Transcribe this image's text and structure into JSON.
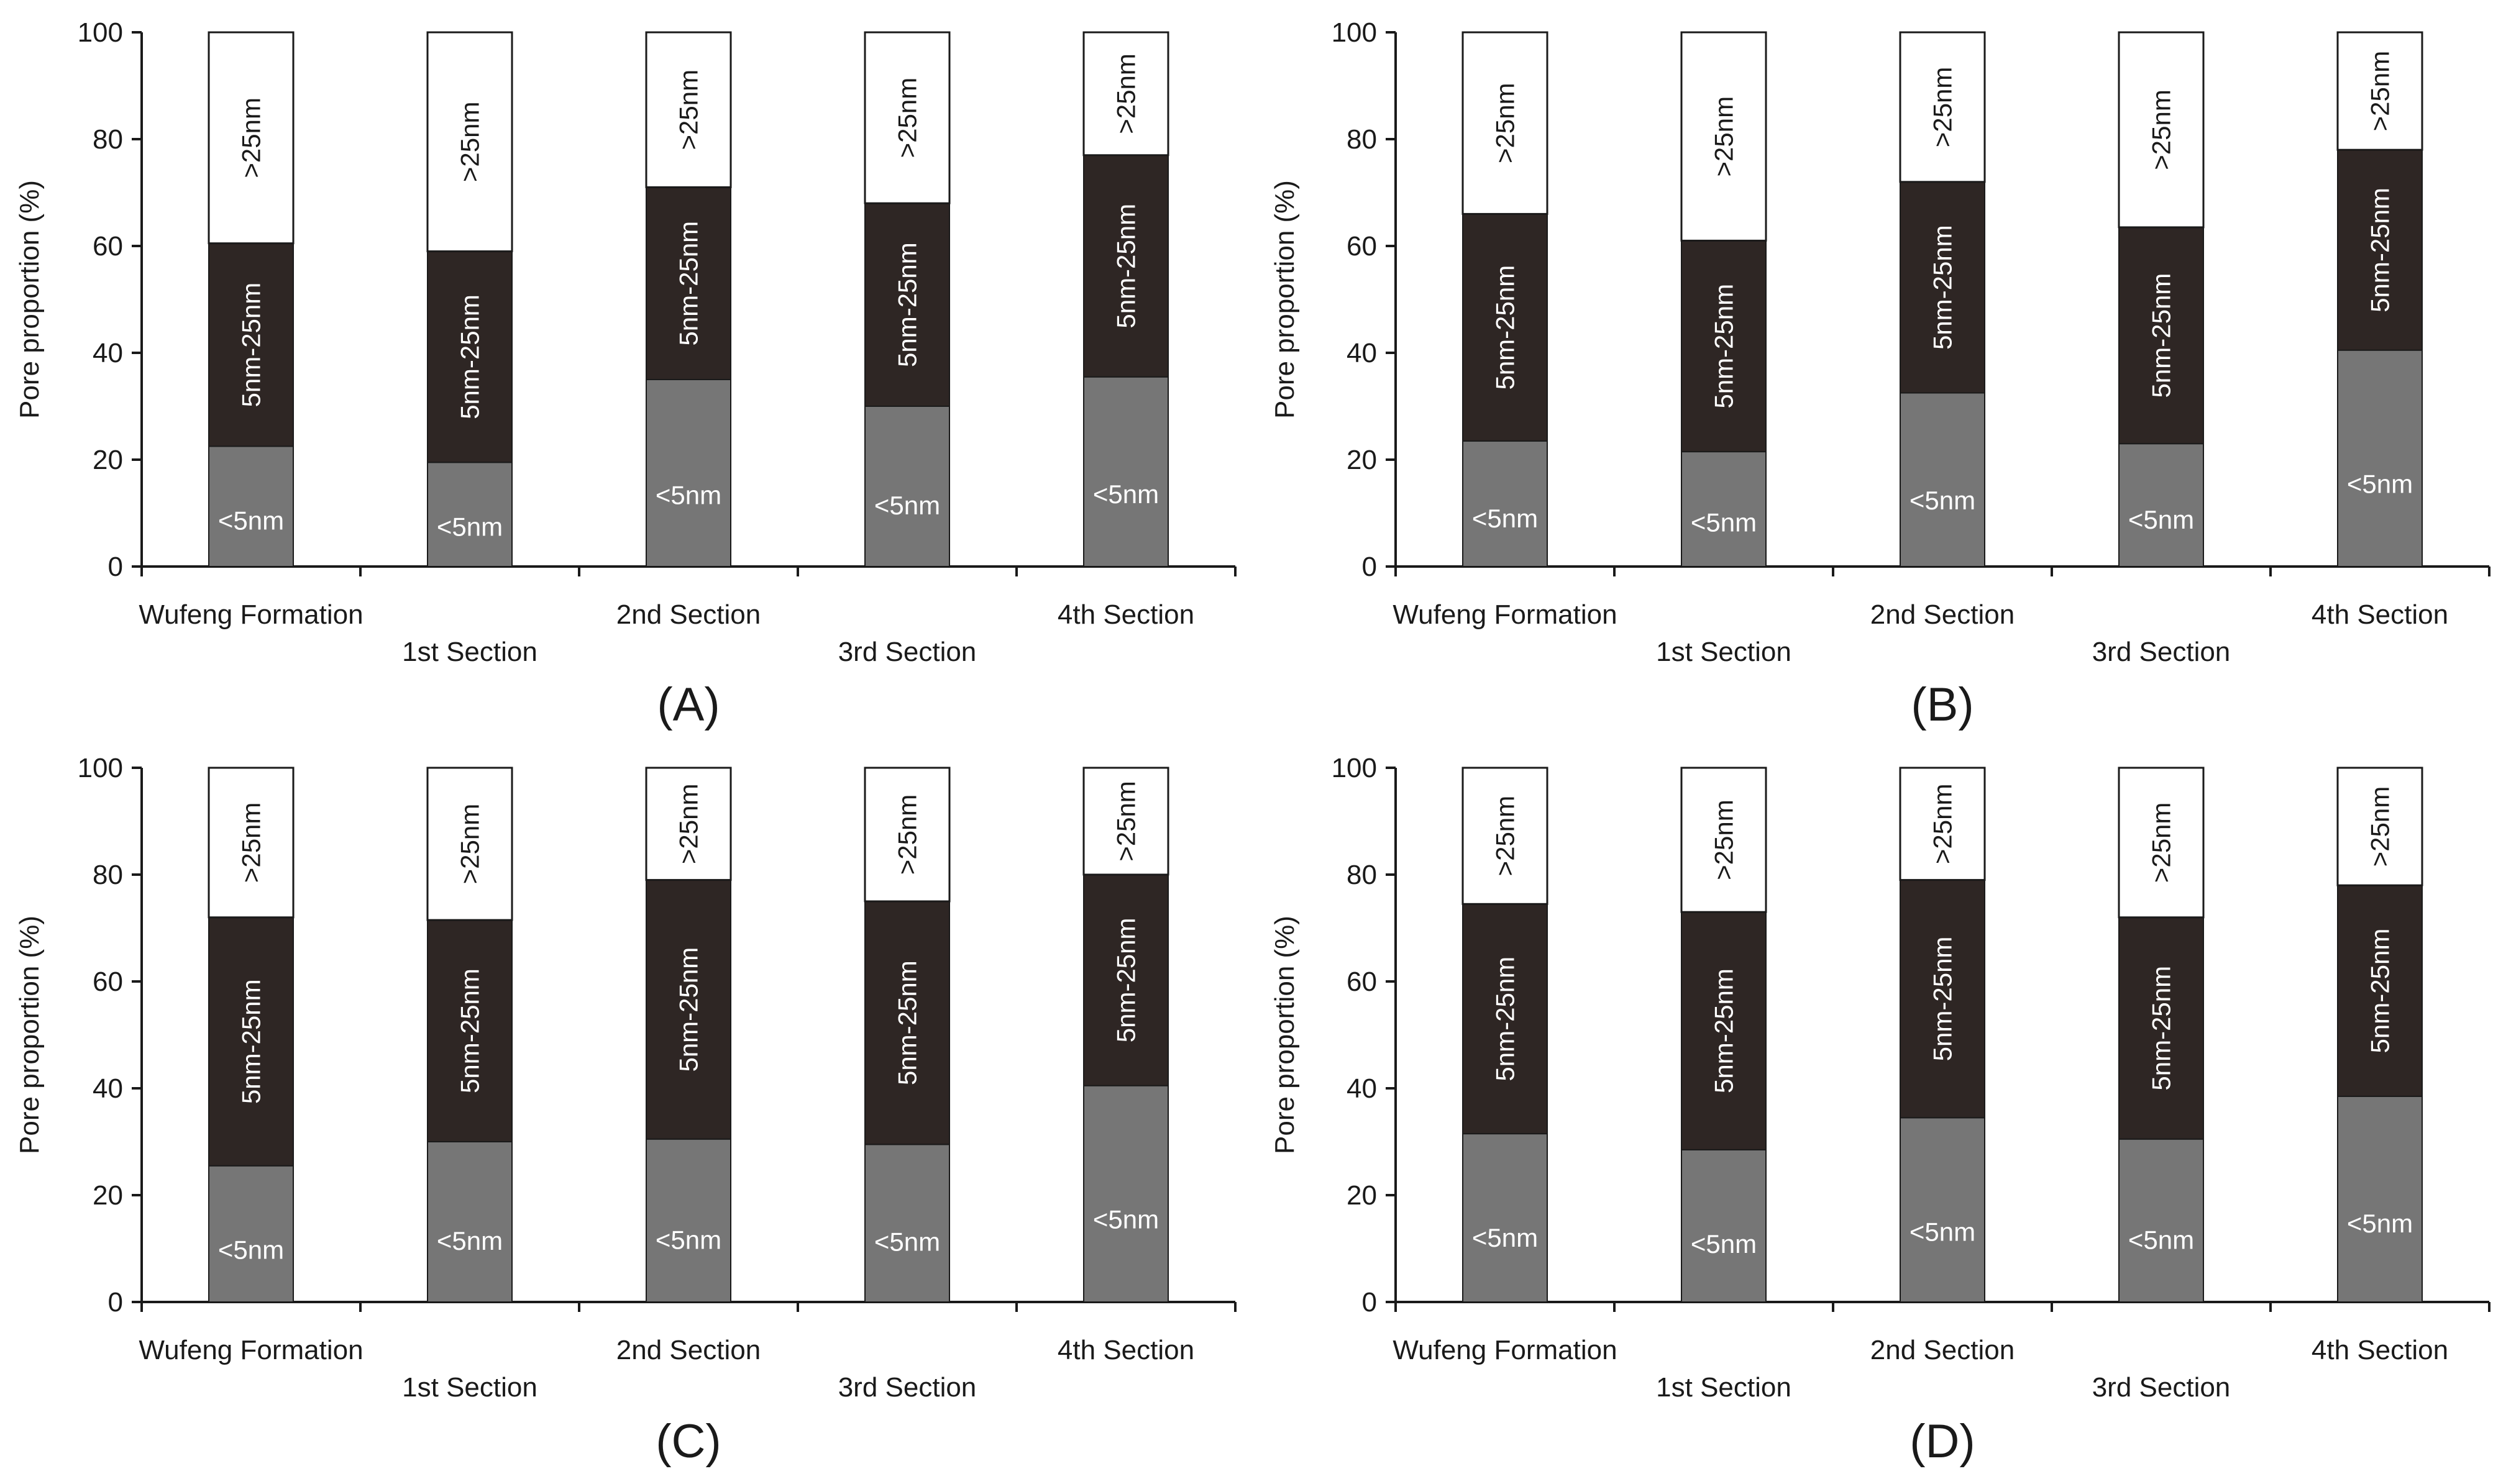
{
  "figure": {
    "y_axis_label": "Pore proportion (%)",
    "y_ticks": [
      "0",
      "20",
      "40",
      "60",
      "80",
      "100"
    ],
    "categories": [
      "Wufeng Formation",
      "1st Section",
      "2nd Section",
      "3rd Section",
      "4th Section"
    ],
    "segment_labels": [
      "<5nm",
      "5nm-25nm",
      ">25nm"
    ],
    "colors": {
      "small": "#767676",
      "medium": "#2e2624",
      "large": "#ffffff",
      "axis": "#1a1a1a"
    }
  },
  "chart_data": [
    {
      "type": "bar",
      "stacked": true,
      "panel_label": "(A)",
      "categories": [
        "Wufeng Formation",
        "1st Section",
        "2nd Section",
        "3rd Section",
        "4th Section"
      ],
      "series": [
        {
          "name": "<5nm",
          "values": [
            22.5,
            19.5,
            35,
            30,
            35.5
          ]
        },
        {
          "name": "5nm-25nm",
          "values": [
            38,
            39.5,
            36,
            38,
            41.5
          ]
        },
        {
          "name": ">25nm",
          "values": [
            39.5,
            41,
            29,
            32,
            23
          ]
        }
      ],
      "ylabel": "Pore proportion (%)",
      "ylim": [
        0,
        100
      ]
    },
    {
      "type": "bar",
      "stacked": true,
      "panel_label": "(B)",
      "categories": [
        "Wufeng Formation",
        "1st Section",
        "2nd Section",
        "3rd Section",
        "4th Section"
      ],
      "series": [
        {
          "name": "<5nm",
          "values": [
            23.5,
            21.5,
            32.5,
            23,
            40.5
          ]
        },
        {
          "name": "5nm-25nm",
          "values": [
            42.5,
            39.5,
            39.5,
            40.5,
            37.5
          ]
        },
        {
          "name": ">25nm",
          "values": [
            34,
            39,
            28,
            36.5,
            22
          ]
        }
      ],
      "ylabel": "Pore proportion (%)",
      "ylim": [
        0,
        100
      ]
    },
    {
      "type": "bar",
      "stacked": true,
      "panel_label": "(C)",
      "categories": [
        "Wufeng Formation",
        "1st Section",
        "2nd Section",
        "3rd Section",
        "4th Section"
      ],
      "series": [
        {
          "name": "<5nm",
          "values": [
            25.5,
            30,
            30.5,
            29.5,
            40.5
          ]
        },
        {
          "name": "5nm-25nm",
          "values": [
            46.5,
            41.5,
            48.5,
            45.5,
            39.5
          ]
        },
        {
          "name": ">25nm",
          "values": [
            28,
            28.5,
            21,
            25,
            20
          ]
        }
      ],
      "ylabel": "Pore proportion (%)",
      "ylim": [
        0,
        100
      ]
    },
    {
      "type": "bar",
      "stacked": true,
      "panel_label": "(D)",
      "categories": [
        "Wufeng Formation",
        "1st Section",
        "2nd Section",
        "3rd Section",
        "4th Section"
      ],
      "series": [
        {
          "name": "<5nm",
          "values": [
            31.5,
            28.5,
            34.5,
            30.5,
            38.5
          ]
        },
        {
          "name": "5nm-25nm",
          "values": [
            43,
            44.5,
            44.5,
            41.5,
            39.5
          ]
        },
        {
          "name": ">25nm",
          "values": [
            25.5,
            27,
            21,
            28,
            22
          ]
        }
      ],
      "ylabel": "Pore proportion (%)",
      "ylim": [
        0,
        100
      ]
    }
  ]
}
